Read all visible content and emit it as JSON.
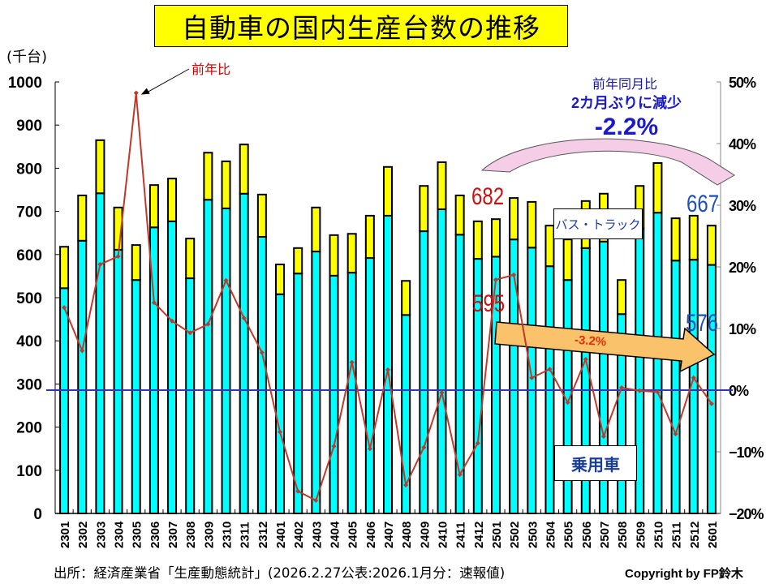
{
  "title": "自動車の国内生産台数の推移",
  "unit_label": "(千台)",
  "yoy_series_label": "前年比",
  "annotation": {
    "line1": "前年同月比",
    "line2": "2カ月ぶりに減少",
    "line3": "-2.2%",
    "trend_arrow_label": "-3.2%",
    "start_total": "682",
    "start_passenger": "595",
    "end_total": "667",
    "end_passenger": "576"
  },
  "legend_boxes": {
    "bus_truck": "バス・トラック",
    "passenger": "乗用車"
  },
  "footer": {
    "source": "出所：経済産業省「生産動態統計」(2026.2.27公表:2026.1月分：速報値)",
    "copyright": "Copyright by FP鈴木"
  },
  "colors": {
    "passenger": "#00ffff",
    "bus_truck": "#ffff00",
    "yoy_line": "#c0392b",
    "zero_line": "#3333bb",
    "trend_arrow": "#f9c26b",
    "curved_arrow": "#f6cde6"
  },
  "chart_data": {
    "type": "bar",
    "stacked": true,
    "title": "自動車の国内生産台数の推移",
    "ylabel": "(千台)",
    "ylim": [
      0,
      1000
    ],
    "yticks": [
      "0",
      "100",
      "200",
      "300",
      "400",
      "500",
      "600",
      "700",
      "800",
      "900",
      "1000"
    ],
    "y2lim": [
      -20,
      50
    ],
    "y2ticks": [
      "−20%",
      "−10%",
      "0%",
      "10%",
      "20%",
      "30%",
      "40%",
      "50%"
    ],
    "categories": [
      "2301",
      "2302",
      "2303",
      "2304",
      "2305",
      "2306",
      "2307",
      "2308",
      "2309",
      "2310",
      "2311",
      "2312",
      "2401",
      "2402",
      "2403",
      "2404",
      "2405",
      "2406",
      "2407",
      "2408",
      "2409",
      "2410",
      "2411",
      "2412",
      "2501",
      "2502",
      "2503",
      "2504",
      "2505",
      "2506",
      "2507",
      "2508",
      "2509",
      "2510",
      "2511",
      "2512",
      "2601"
    ],
    "series": [
      {
        "name": "乗用車",
        "axis": "left",
        "type": "bar",
        "values": [
          522,
          632,
          742,
          611,
          541,
          663,
          677,
          545,
          727,
          707,
          741,
          641,
          508,
          556,
          607,
          551,
          558,
          592,
          690,
          460,
          654,
          705,
          646,
          590,
          595,
          635,
          616,
          573,
          541,
          615,
          630,
          462,
          660,
          697,
          586,
          588,
          576
        ]
      },
      {
        "name": "バス・トラック",
        "axis": "left",
        "type": "bar",
        "values": [
          96,
          105,
          123,
          98,
          81,
          98,
          99,
          92,
          109,
          109,
          114,
          98,
          69,
          59,
          102,
          94,
          90,
          98,
          113,
          79,
          105,
          109,
          91,
          87,
          87,
          96,
          106,
          94,
          94,
          109,
          111,
          79,
          99,
          115,
          98,
          102,
          91
        ]
      },
      {
        "name": "前年比",
        "axis": "right",
        "type": "line",
        "unit": "%",
        "values": [
          13.4,
          6.4,
          20.4,
          21.7,
          48.2,
          14.2,
          11.2,
          9.3,
          10.7,
          17.8,
          11.7,
          6.1,
          -6.8,
          -16.4,
          -17.9,
          -9.1,
          4.5,
          -9.5,
          3.3,
          -15.4,
          -9.3,
          -0.4,
          -13.7,
          -8.6,
          17.9,
          18.7,
          2.0,
          3.4,
          -2.0,
          5.0,
          -7.5,
          0.4,
          -0.1,
          -0.3,
          -7.1,
          2.0,
          -2.2
        ]
      }
    ],
    "grid": false
  }
}
